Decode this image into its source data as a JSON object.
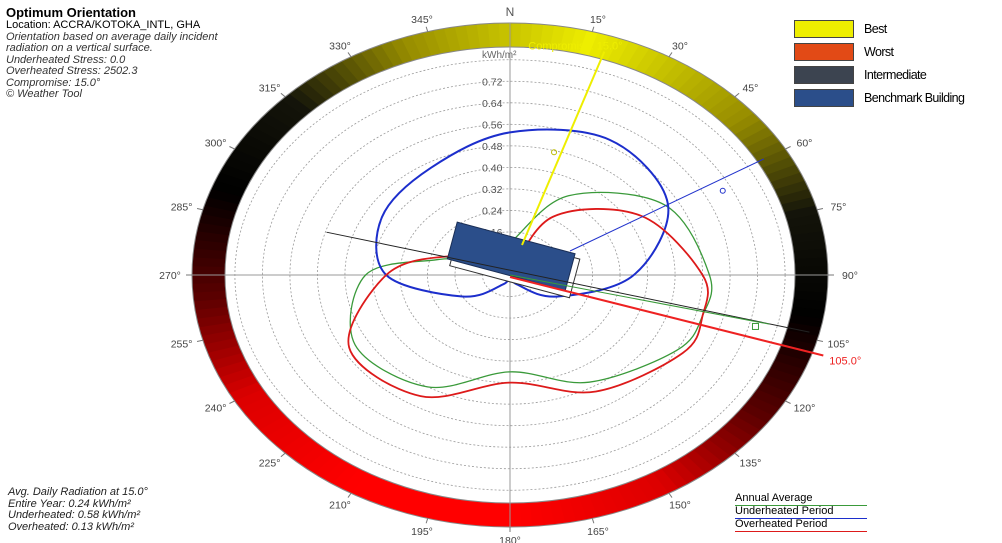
{
  "header": {
    "title": "Optimum Orientation",
    "location": "Location: ACCRA/KOTOKA_INTL, GHA",
    "description_1": "Orientation based on average daily incident",
    "description_2": "radiation on a vertical surface.",
    "underheated_stress": "Underheated Stress: 0.0",
    "overheated_stress": "Overheated Stress: 2502.3",
    "compromise": "Compromise: 15.0°",
    "credit": "© Weather Tool"
  },
  "footer": {
    "avg_title": "Avg. Daily Radiation at 15.0°",
    "entire_year": "Entire Year: 0.24 kWh/m²",
    "underheated": "Underheated: 0.58 kWh/m²",
    "overheated": "Overheated: 0.13 kWh/m²"
  },
  "legend": [
    {
      "label": "Best",
      "color": "#eeee00"
    },
    {
      "label": "Worst",
      "color": "#e24a16"
    },
    {
      "label": "Intermediate",
      "color": "#3c4450"
    },
    {
      "label": "Benchmark Building",
      "color": "#2b4e8a"
    }
  ],
  "line_legend": [
    {
      "label": "Annual Average",
      "color": "#3a9a3a"
    },
    {
      "label": "Underheated Period",
      "color": "#1c2ecc"
    },
    {
      "label": "Overheated Period",
      "color": "#dd1a1a"
    }
  ],
  "chart_data": {
    "type": "polar",
    "north_label": "N",
    "radial_unit": "kWh/m²",
    "radial_ticks": [
      "0.16",
      "0.24",
      "0.32",
      "0.40",
      "0.48",
      "0.56",
      "0.64",
      "0.72"
    ],
    "radial_max": 0.8,
    "angle_ticks": [
      0,
      15,
      30,
      45,
      60,
      75,
      90,
      105,
      120,
      135,
      150,
      165,
      180,
      195,
      210,
      225,
      240,
      255,
      270,
      285,
      300,
      315,
      330,
      345
    ],
    "compromise": {
      "angle": 15,
      "label": "Compromise: 15.0°",
      "color": "#eeee00"
    },
    "worst": {
      "angle": 105,
      "label": "105.0°",
      "color": "#ee2222"
    },
    "underheated_peak": {
      "angle": 60,
      "color": "#2233cc"
    },
    "series": [
      {
        "name": "Annual Average",
        "color": "#3a9a3a",
        "angles": [
          0,
          30,
          60,
          90,
          105,
          120,
          150,
          180,
          210,
          240,
          270,
          285,
          300,
          330
        ],
        "values": [
          0.12,
          0.34,
          0.52,
          0.58,
          0.58,
          0.56,
          0.46,
          0.36,
          0.48,
          0.52,
          0.42,
          0.22,
          0.12,
          0.1
        ]
      },
      {
        "name": "Underheated Period",
        "color": "#1c2ecc",
        "angles": [
          0,
          30,
          60,
          90,
          120,
          150,
          180,
          210,
          240,
          270,
          300,
          330
        ],
        "values": [
          0.53,
          0.58,
          0.53,
          0.36,
          0.16,
          0.04,
          0.0,
          0.04,
          0.16,
          0.36,
          0.43,
          0.46
        ]
      },
      {
        "name": "Overheated Period",
        "color": "#dd1a1a",
        "angles": [
          0,
          30,
          60,
          90,
          105,
          120,
          150,
          180,
          210,
          240,
          270,
          290,
          310,
          340
        ],
        "values": [
          0.0,
          0.25,
          0.44,
          0.56,
          0.58,
          0.58,
          0.5,
          0.4,
          0.52,
          0.54,
          0.36,
          0.2,
          0.06,
          0.0
        ]
      }
    ]
  }
}
